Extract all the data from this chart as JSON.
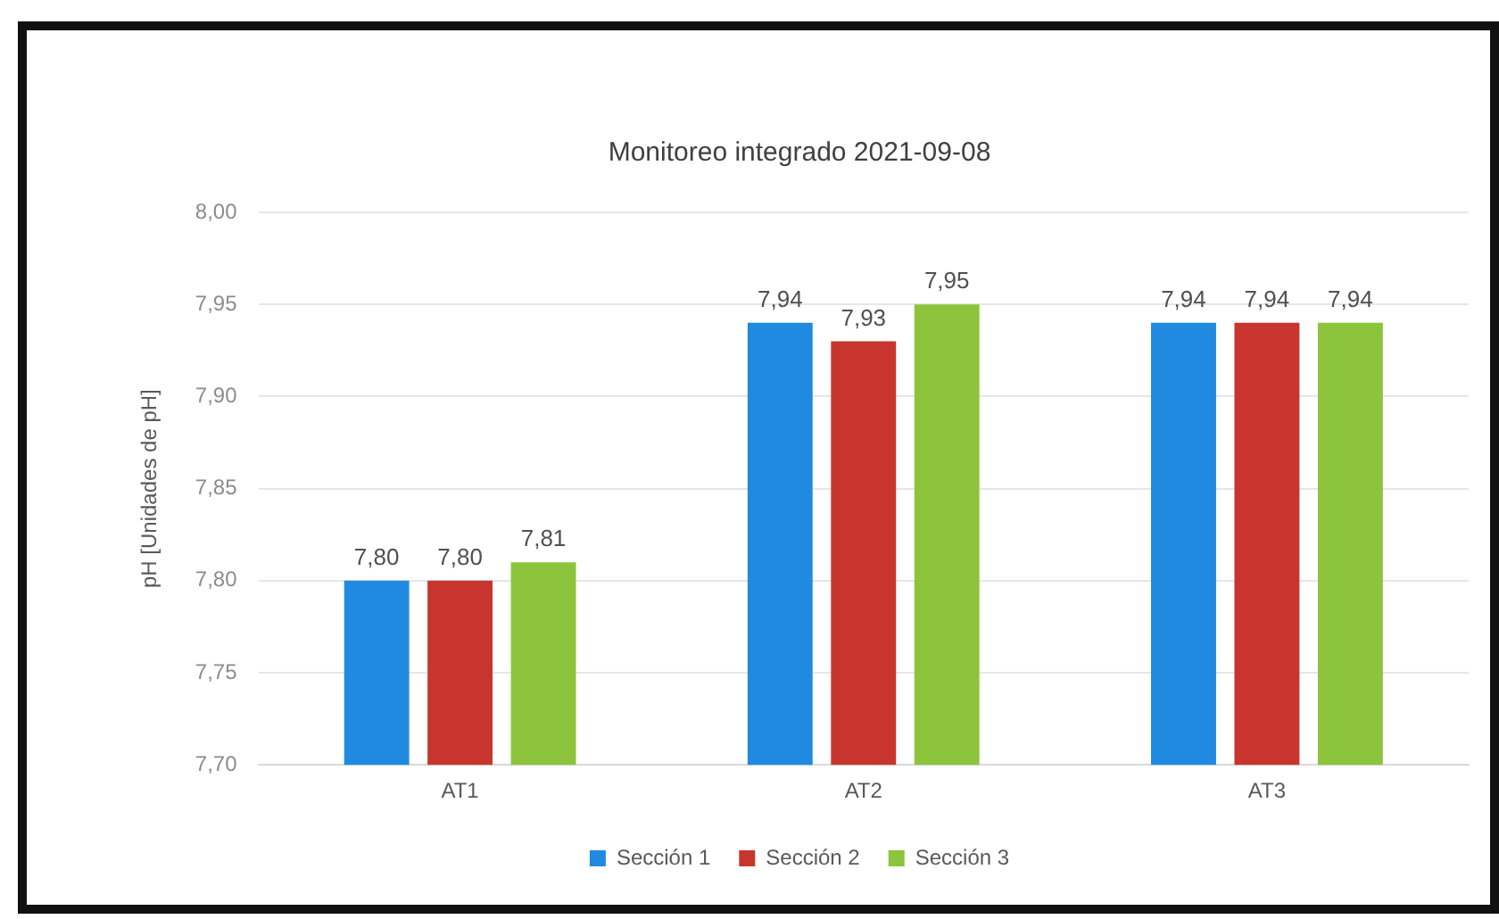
{
  "chart_data": {
    "type": "bar",
    "title": "Monitoreo integrado 2021-09-08",
    "ylabel": "pH [Unidades de pH]",
    "categories": [
      "AT1",
      "AT2",
      "AT3"
    ],
    "series": [
      {
        "name": "Sección 1",
        "color": "#1f8ae0",
        "values": [
          7.8,
          7.94,
          7.94
        ],
        "value_labels": [
          "7,80",
          "7,94",
          "7,94"
        ]
      },
      {
        "name": "Sección 2",
        "color": "#c8352e",
        "values": [
          7.8,
          7.93,
          7.94
        ],
        "value_labels": [
          "7,80",
          "7,93",
          "7,94"
        ]
      },
      {
        "name": "Sección 3",
        "color": "#8cc43c",
        "values": [
          7.81,
          7.95,
          7.94
        ],
        "value_labels": [
          "7,81",
          "7,95",
          "7,94"
        ]
      }
    ],
    "ylim": [
      7.7,
      8.0
    ],
    "yticks": [
      {
        "value": 7.7,
        "label": "7,70"
      },
      {
        "value": 7.75,
        "label": "7,75"
      },
      {
        "value": 7.8,
        "label": "7,80"
      },
      {
        "value": 7.85,
        "label": "7,85"
      },
      {
        "value": 7.9,
        "label": "7,90"
      },
      {
        "value": 7.95,
        "label": "7,95"
      },
      {
        "value": 8.0,
        "label": "8,00"
      }
    ],
    "grid": "y",
    "legend": "bottom"
  }
}
